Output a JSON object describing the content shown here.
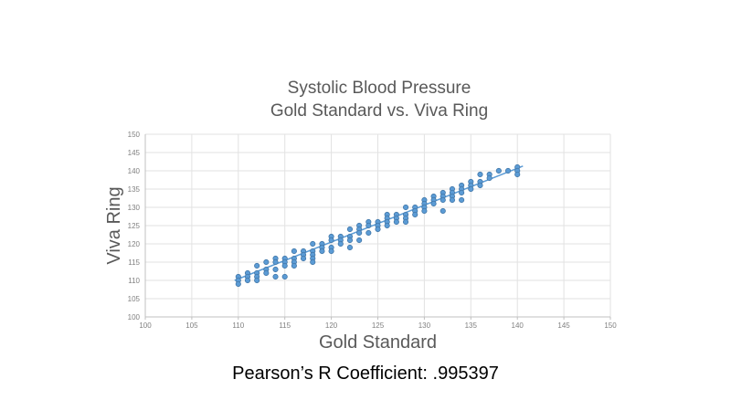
{
  "slide": {
    "background": "#ffffff",
    "caption": "Pearson’s R Coefficient: .995397"
  },
  "chart": {
    "title_line1": "Systolic Blood Pressure",
    "title_line2": "Gold Standard vs. Viva Ring",
    "x_axis_title": "Gold Standard",
    "y_axis_title": "Viva Ring",
    "colors": {
      "marker": "#5B9BD5",
      "marker_edge": "#4175A5",
      "trend": "#5B9BD5",
      "grid": "#E2E2E2",
      "axis_line": "#C0C0C0",
      "tick_text": "#808080",
      "title_text": "#595959"
    }
  },
  "chart_data": {
    "type": "scatter",
    "title": "Systolic Blood Pressure — Gold Standard vs. Viva Ring",
    "xlabel": "Gold Standard",
    "ylabel": "Viva Ring",
    "xlim": [
      100,
      150
    ],
    "ylim": [
      100,
      150
    ],
    "tick_step": 5,
    "grid": true,
    "legend": false,
    "annotation": "Pearson’s R Coefficient: .995397",
    "pearson_r": 0.995397,
    "trendline": {
      "x1": 109.6,
      "y1": 110.0,
      "x2": 140.6,
      "y2": 141.3
    },
    "points": [
      [
        110,
        111
      ],
      [
        110,
        110
      ],
      [
        110,
        109
      ],
      [
        111,
        112
      ],
      [
        111,
        111
      ],
      [
        111,
        110
      ],
      [
        112,
        114
      ],
      [
        112,
        112
      ],
      [
        112,
        111
      ],
      [
        112,
        110
      ],
      [
        113,
        115
      ],
      [
        113,
        113
      ],
      [
        113,
        112
      ],
      [
        114,
        116
      ],
      [
        114,
        115
      ],
      [
        114,
        113
      ],
      [
        114,
        111
      ],
      [
        115,
        116
      ],
      [
        115,
        115
      ],
      [
        115,
        114
      ],
      [
        115,
        111
      ],
      [
        116,
        118
      ],
      [
        116,
        116
      ],
      [
        116,
        115
      ],
      [
        116,
        114
      ],
      [
        117,
        118
      ],
      [
        117,
        117
      ],
      [
        117,
        116
      ],
      [
        118,
        120
      ],
      [
        118,
        118
      ],
      [
        118,
        117
      ],
      [
        118,
        116
      ],
      [
        118,
        115
      ],
      [
        119,
        120
      ],
      [
        119,
        119
      ],
      [
        119,
        118
      ],
      [
        120,
        122
      ],
      [
        120,
        121
      ],
      [
        120,
        119
      ],
      [
        120,
        118
      ],
      [
        121,
        122
      ],
      [
        121,
        121
      ],
      [
        121,
        120
      ],
      [
        122,
        124
      ],
      [
        122,
        122
      ],
      [
        122,
        121
      ],
      [
        122,
        119
      ],
      [
        123,
        125
      ],
      [
        123,
        124
      ],
      [
        123,
        123
      ],
      [
        123,
        121
      ],
      [
        124,
        126
      ],
      [
        124,
        125
      ],
      [
        124,
        123
      ],
      [
        125,
        126
      ],
      [
        125,
        125
      ],
      [
        125,
        124
      ],
      [
        126,
        128
      ],
      [
        126,
        127
      ],
      [
        126,
        126
      ],
      [
        126,
        125
      ],
      [
        127,
        128
      ],
      [
        127,
        127
      ],
      [
        127,
        126
      ],
      [
        128,
        130
      ],
      [
        128,
        128
      ],
      [
        128,
        127
      ],
      [
        128,
        126
      ],
      [
        129,
        130
      ],
      [
        129,
        129
      ],
      [
        129,
        128
      ],
      [
        130,
        132
      ],
      [
        130,
        131
      ],
      [
        130,
        130
      ],
      [
        130,
        129
      ],
      [
        131,
        133
      ],
      [
        131,
        132
      ],
      [
        131,
        131
      ],
      [
        132,
        134
      ],
      [
        132,
        133
      ],
      [
        132,
        132
      ],
      [
        132,
        129
      ],
      [
        133,
        135
      ],
      [
        133,
        134
      ],
      [
        133,
        133
      ],
      [
        133,
        132
      ],
      [
        134,
        136
      ],
      [
        134,
        135
      ],
      [
        134,
        134
      ],
      [
        134,
        132
      ],
      [
        135,
        137
      ],
      [
        135,
        136
      ],
      [
        135,
        135
      ],
      [
        136,
        139
      ],
      [
        136,
        137
      ],
      [
        136,
        136
      ],
      [
        137,
        139
      ],
      [
        137,
        138
      ],
      [
        138,
        140
      ],
      [
        139,
        140
      ],
      [
        140,
        141
      ],
      [
        140,
        140
      ],
      [
        140,
        139
      ]
    ]
  }
}
